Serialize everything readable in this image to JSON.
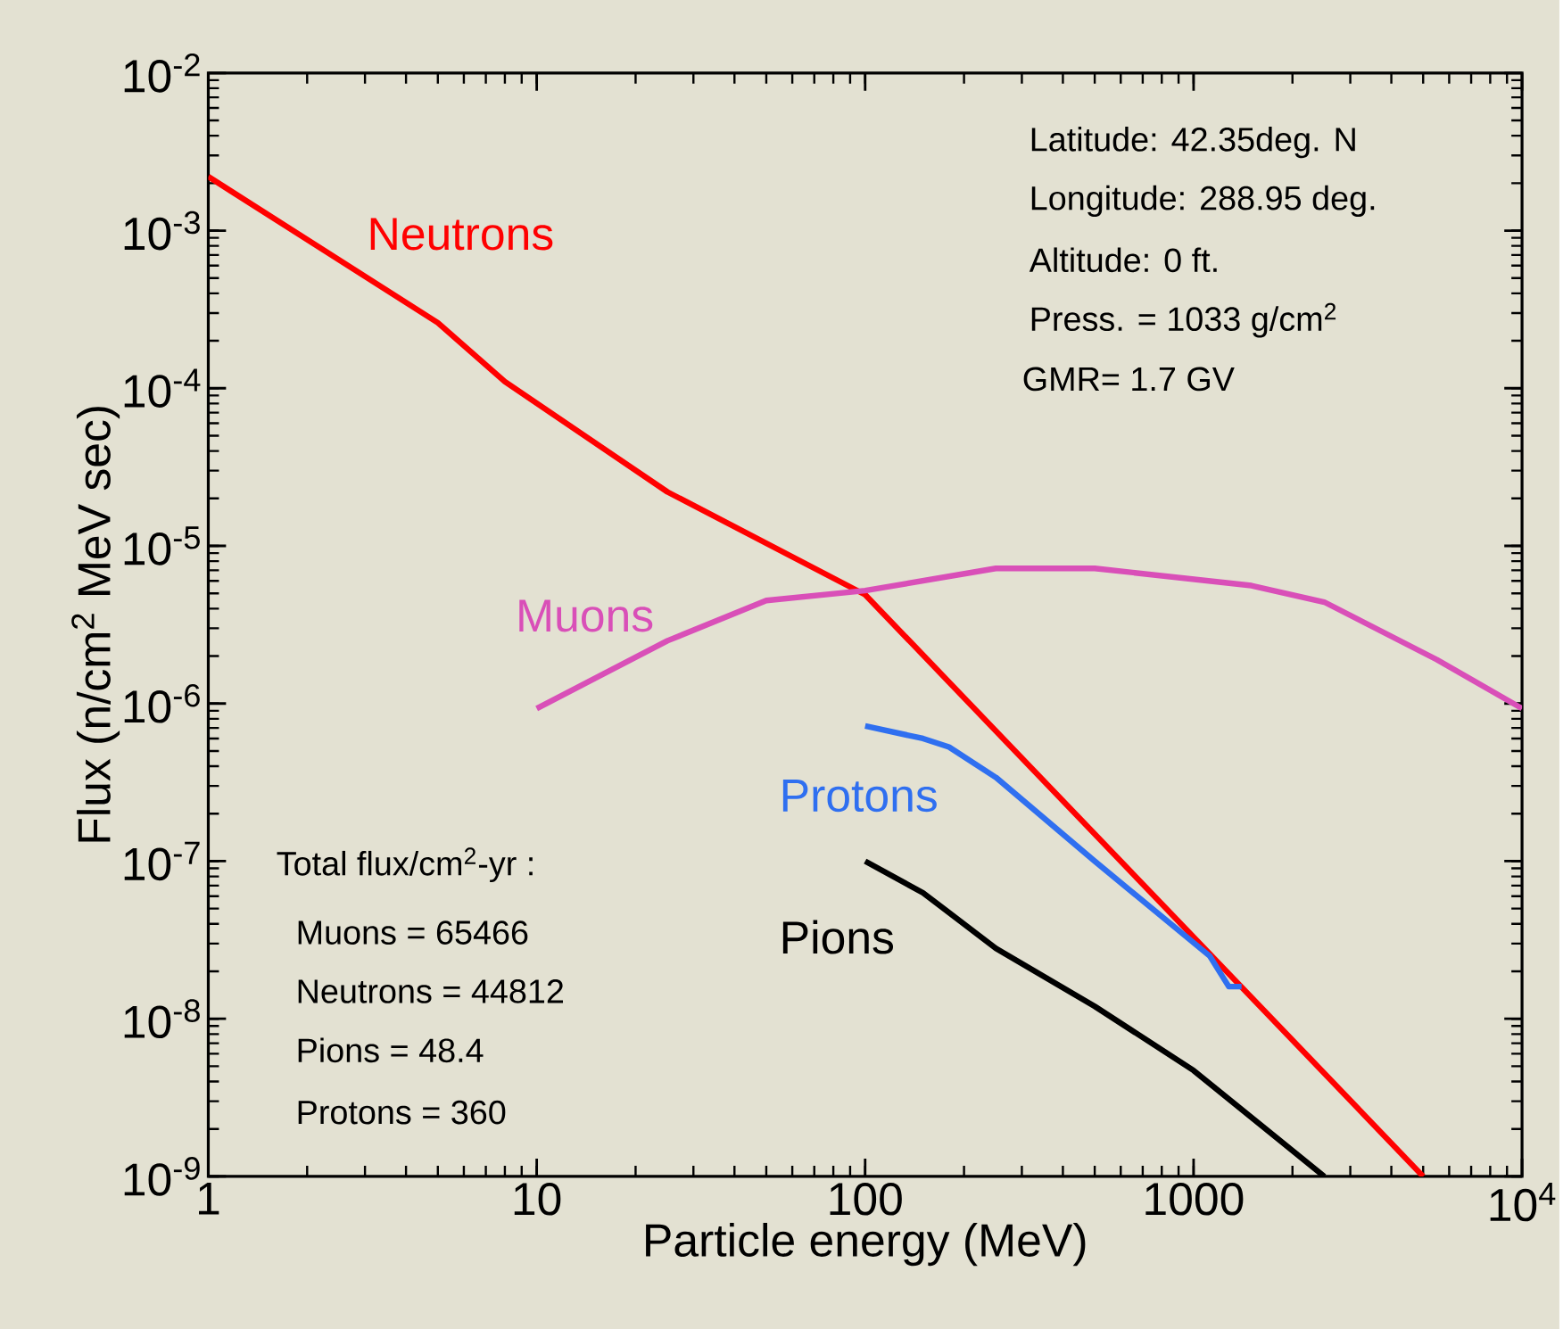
{
  "chart_data": {
    "type": "line",
    "xlabel": "Particle energy (MeV)",
    "ylabel": "Flux (n/cm$^{2}$ MeV sec)",
    "log": "xy",
    "grid": false,
    "xlim": [
      1,
      10000
    ],
    "ylim": [
      1e-09,
      0.01
    ],
    "xticks": [
      1,
      10,
      100,
      1000,
      {
        "value": 10000,
        "label": "10$^{4}$"
      }
    ],
    "yticks": [
      {
        "value": 1e-09,
        "label": "10$^{-9}$"
      },
      {
        "value": 1e-08,
        "label": "10$^{-8}$"
      },
      {
        "value": 1e-07,
        "label": "10$^{-7}$"
      },
      {
        "value": 1e-06,
        "label": "10$^{-6}$"
      },
      {
        "value": 1e-05,
        "label": "10$^{-5}$"
      },
      {
        "value": 0.0001,
        "label": "10$^{-4}$"
      },
      {
        "value": 0.001,
        "label": "10$^{-3}$"
      },
      {
        "value": 0.01,
        "label": "10$^{-2}$"
      }
    ],
    "series": [
      {
        "name": "Neutrons",
        "color": "#ff0000",
        "x": [
          1,
          5,
          8,
          25,
          100,
          5000
        ],
        "values": [
          0.0022,
          0.00026,
          0.00011,
          2.2e-05,
          4.9e-06,
          1e-09
        ]
      },
      {
        "name": "Muons",
        "color": "#d94fb8",
        "x": [
          10,
          25,
          50,
          100,
          250,
          500,
          1500,
          2500,
          5500,
          10000
        ],
        "values": [
          9.3e-07,
          2.5e-06,
          4.5e-06,
          5.2e-06,
          7.2e-06,
          7.2e-06,
          5.6e-06,
          4.4e-06,
          1.9e-06,
          9.3e-07
        ]
      },
      {
        "name": "Protons",
        "color": "#2f6ff0",
        "x": [
          100,
          150,
          180,
          250,
          500,
          1120,
          1280,
          1400
        ],
        "values": [
          7.2e-07,
          6e-07,
          5.3e-07,
          3.4e-07,
          1e-07,
          2.5e-08,
          1.6e-08,
          1.6e-08
        ]
      },
      {
        "name": "Pions",
        "color": "#000000",
        "x": [
          100,
          150,
          250,
          500,
          1000,
          2500
        ],
        "values": [
          1e-07,
          6.3e-08,
          2.8e-08,
          1.2e-08,
          4.7e-09,
          1e-09
        ]
      }
    ],
    "annotations": [
      "Latitude: 42.35deg. N",
      "Longitude: 288.95 deg.",
      "Altitude: 0 ft.",
      "Press. = 1033 g/cm$^{2}$",
      "GMR= 1.7 GV",
      "Total flux/cm$^{2}$-yr :",
      "Muons = 65466",
      "Neutrons = 44812",
      "Pions = 48.4",
      "Protons = 360"
    ]
  }
}
